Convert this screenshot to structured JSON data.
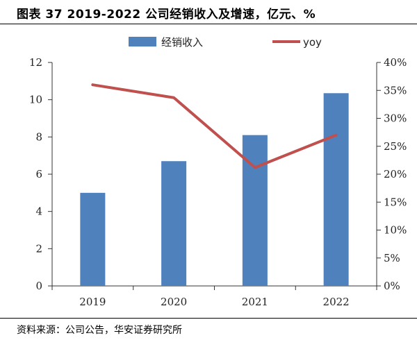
{
  "figure": {
    "title": "图表 37 2019-2022 公司经销收入及增速，亿元、%",
    "source": "资料来源：公司公告，华安证券研究所"
  },
  "chart_data": {
    "type": "bar",
    "categories": [
      "2019",
      "2020",
      "2021",
      "2022"
    ],
    "series": [
      {
        "name": "经销收入",
        "type": "bar",
        "axis": "left",
        "color": "#4f81bd",
        "values": [
          5.0,
          6.7,
          8.1,
          10.35
        ]
      },
      {
        "name": "yoy",
        "type": "line",
        "axis": "right",
        "color": "#c0504d",
        "values": [
          0.36,
          0.337,
          0.212,
          0.27
        ]
      }
    ],
    "y_left": {
      "min": 0,
      "max": 12,
      "ticks": [
        0,
        2,
        4,
        6,
        8,
        10,
        12
      ],
      "tick_labels": [
        "0",
        "2",
        "4",
        "6",
        "8",
        "10",
        "12"
      ]
    },
    "y_right": {
      "min": 0,
      "max": 0.4,
      "ticks": [
        0,
        0.05,
        0.1,
        0.15,
        0.2,
        0.25,
        0.3,
        0.35,
        0.4
      ],
      "tick_labels": [
        "0%",
        "5%",
        "10%",
        "15%",
        "20%",
        "25%",
        "30%",
        "35%",
        "40%"
      ]
    },
    "grid": false,
    "legend_position": "top"
  }
}
